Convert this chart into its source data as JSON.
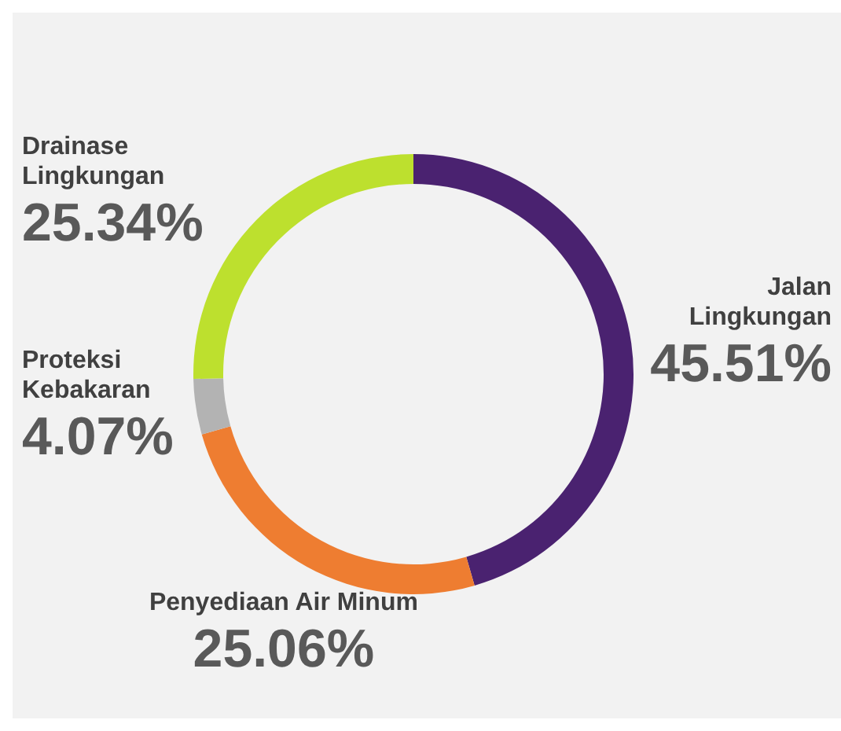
{
  "chart_data": {
    "type": "donut",
    "categories": [
      "Jalan\nLingkungan",
      "Penyediaan Air Minum",
      "Proteksi\nKebakaran",
      "Drainase\nLingkungan"
    ],
    "values": [
      45.51,
      25.06,
      4.07,
      25.34
    ],
    "value_labels": [
      "45.51%",
      "25.06%",
      "4.07%",
      "25.34%"
    ],
    "colors": [
      "#4a2270",
      "#ee7d31",
      "#b3b3b3",
      "#bde02e"
    ]
  }
}
